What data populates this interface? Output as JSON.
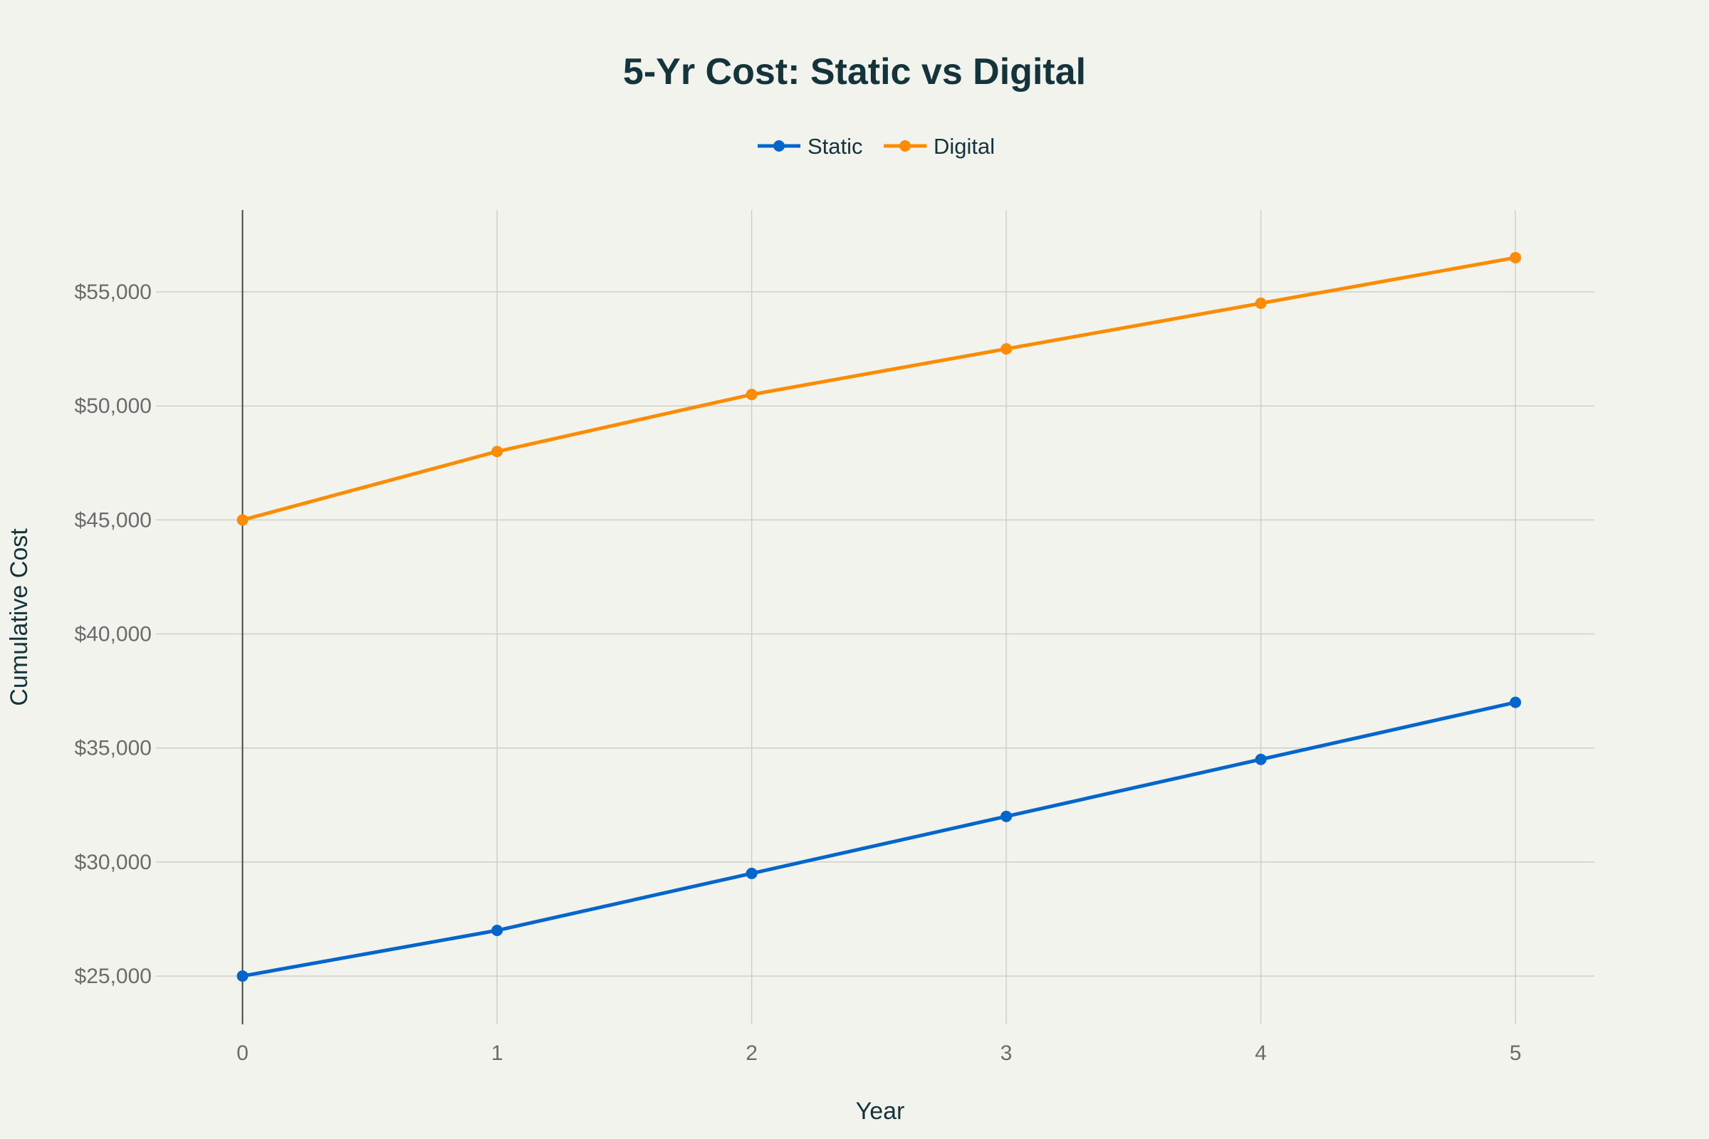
{
  "chart_data": {
    "type": "line",
    "title": "5-Yr Cost: Static vs Digital",
    "xlabel": "Year",
    "ylabel": "Cumulative Cost",
    "x": [
      0,
      1,
      2,
      3,
      4,
      5
    ],
    "xticks": [
      "0",
      "1",
      "2",
      "3",
      "4",
      "5"
    ],
    "yticks": [
      25000,
      30000,
      35000,
      40000,
      45000,
      50000,
      55000
    ],
    "ytick_labels": [
      "$25,000",
      "$30,000",
      "$35,000",
      "$40,000",
      "$45,000",
      "$50,000",
      "$55,000"
    ],
    "xlim": [
      -0.34,
      5.31
    ],
    "ylim": [
      22880,
      58590
    ],
    "grid": true,
    "legend_position": "top-center",
    "series": [
      {
        "name": "Static",
        "color": "#0066cc",
        "values": [
          25000,
          27000,
          29500,
          32000,
          34500,
          37000
        ]
      },
      {
        "name": "Digital",
        "color": "#ff8c00",
        "values": [
          45000,
          48000,
          50500,
          52500,
          54500,
          56500
        ]
      }
    ]
  }
}
